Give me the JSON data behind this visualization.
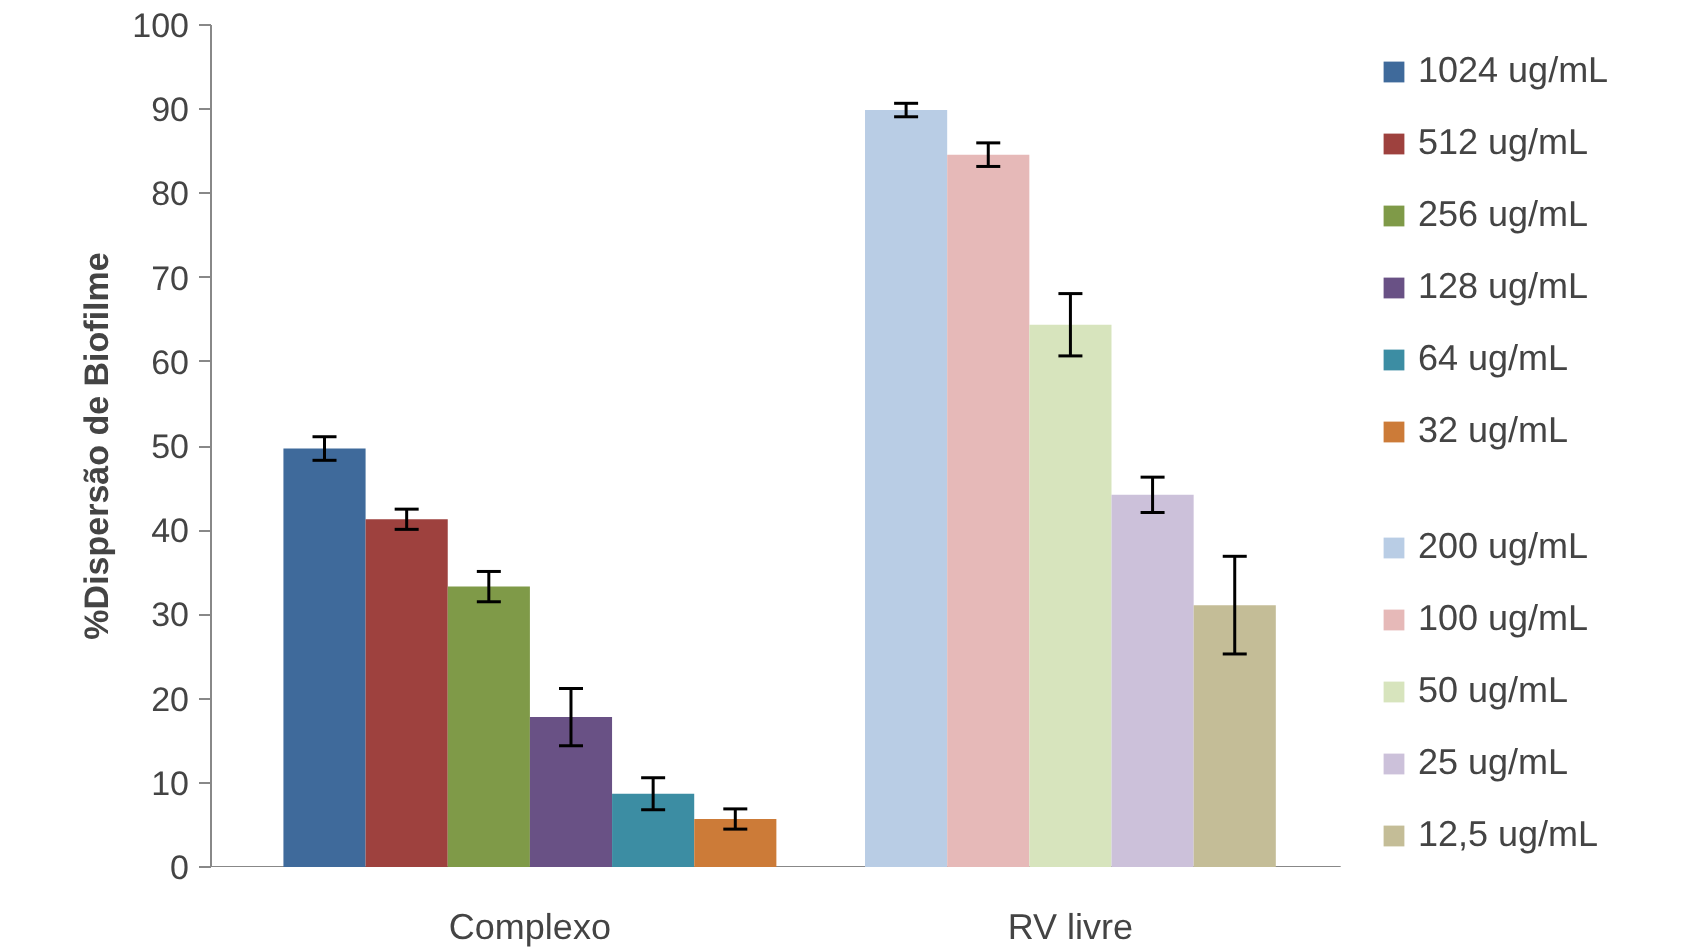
{
  "chart_data": {
    "type": "bar",
    "ylabel": "%Dispersão de Biofilme",
    "categories": [
      "Complexo",
      "RV livre"
    ],
    "ylim": [
      0,
      100
    ],
    "yticks": [
      0,
      10,
      20,
      30,
      40,
      50,
      60,
      70,
      80,
      90,
      100
    ],
    "grid": false,
    "legend": "right",
    "series": [
      {
        "name": "1024 ug/mL",
        "color": "#3f6a9b",
        "values": [
          49.7,
          null
        ],
        "errors": [
          1.4,
          null
        ]
      },
      {
        "name": "512 ug/mL",
        "color": "#9e413e",
        "values": [
          41.3,
          null
        ],
        "errors": [
          1.2,
          null
        ]
      },
      {
        "name": "256 ug/mL",
        "color": "#7f9a48",
        "values": [
          33.3,
          null
        ],
        "errors": [
          1.8,
          null
        ]
      },
      {
        "name": "128 ug/mL",
        "color": "#695185",
        "values": [
          17.8,
          null
        ],
        "errors": [
          3.4,
          null
        ]
      },
      {
        "name": "64 ug/mL",
        "color": "#3c8da3",
        "values": [
          8.7,
          null
        ],
        "errors": [
          1.9,
          null
        ]
      },
      {
        "name": "32 ug/mL",
        "color": "#cc7b38",
        "values": [
          5.7,
          null
        ],
        "errors": [
          1.2,
          null
        ]
      },
      {
        "name": "200 ug/mL",
        "color": "#b9cde5",
        "values": [
          null,
          89.9
        ],
        "errors": [
          null,
          0.8
        ]
      },
      {
        "name": "100 ug/mL",
        "color": "#e6b9b8",
        "values": [
          null,
          84.6
        ],
        "errors": [
          null,
          1.4
        ]
      },
      {
        "name": "50 ug/mL",
        "color": "#d7e4bd",
        "values": [
          null,
          64.4
        ],
        "errors": [
          null,
          3.7
        ]
      },
      {
        "name": "25 ug/mL",
        "color": "#ccc1da",
        "values": [
          null,
          44.2
        ],
        "errors": [
          null,
          2.1
        ]
      },
      {
        "name": "12,5 ug/mL",
        "color": "#c4bd97",
        "values": [
          null,
          31.1
        ],
        "errors": [
          null,
          5.8
        ]
      }
    ]
  }
}
